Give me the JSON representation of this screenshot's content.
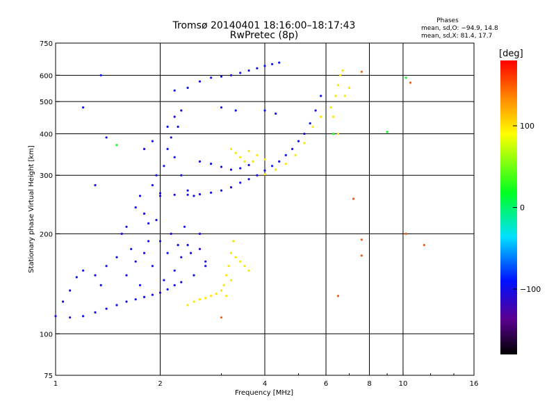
{
  "header": {
    "title_line1": "Tromsø 20140401 18:16:00–18:17:43",
    "title_line2": "RwPretec (8p)",
    "stats_title": "Phases",
    "stats_O": "mean, sd,O: −94.9, 14.8",
    "stats_X": "mean, sd,X:  81.4, 17.7"
  },
  "colorbar": {
    "label": "[deg]",
    "ticks": [
      {
        "value": 100,
        "label": "100"
      },
      {
        "value": 0,
        "label": "0"
      },
      {
        "value": -100,
        "label": "−100"
      }
    ],
    "range": [
      -180,
      180
    ]
  },
  "chart_data": {
    "type": "scatter",
    "xlabel": "Frequency [MHz]",
    "ylabel": "Stationary phase Virtual Height [km]",
    "x_scale": "log",
    "y_scale": "log",
    "xlim": [
      1,
      16
    ],
    "ylim": [
      75,
      750
    ],
    "x_ticks": [
      {
        "value": 1,
        "label": "1"
      },
      {
        "value": 2,
        "label": "2"
      },
      {
        "value": 4,
        "label": "4"
      },
      {
        "value": 6,
        "label": "6"
      },
      {
        "value": 8,
        "label": "8"
      },
      {
        "value": 10,
        "label": "10"
      },
      {
        "value": 16,
        "label": "16"
      }
    ],
    "x_gridlines": [
      2,
      4,
      6,
      8,
      10
    ],
    "y_ticks": [
      {
        "value": 75,
        "label": "75"
      },
      {
        "value": 100,
        "label": "100"
      },
      {
        "value": 200,
        "label": "200"
      },
      {
        "value": 300,
        "label": "300"
      },
      {
        "value": 400,
        "label": "400"
      },
      {
        "value": 500,
        "label": "500"
      },
      {
        "value": 600,
        "label": "600"
      },
      {
        "value": 750,
        "label": "750"
      }
    ],
    "y_gridlines": [
      100,
      200,
      300,
      400,
      500,
      600
    ],
    "grid": true,
    "series": [
      {
        "color_phase": -100,
        "points": [
          [
            1.0,
            113
          ],
          [
            1.1,
            112
          ],
          [
            1.2,
            113
          ],
          [
            1.3,
            116
          ],
          [
            1.4,
            119
          ],
          [
            1.5,
            122
          ],
          [
            1.6,
            125
          ],
          [
            1.7,
            127
          ],
          [
            1.8,
            129
          ],
          [
            1.9,
            131
          ],
          [
            2.0,
            133
          ],
          [
            2.1,
            136
          ],
          [
            2.2,
            140
          ],
          [
            2.3,
            143
          ],
          [
            1.05,
            125
          ],
          [
            1.1,
            135
          ],
          [
            1.15,
            148
          ],
          [
            1.2,
            155
          ],
          [
            1.3,
            150
          ],
          [
            1.35,
            140
          ],
          [
            1.4,
            160
          ],
          [
            1.5,
            170
          ],
          [
            1.55,
            200
          ],
          [
            1.6,
            210
          ],
          [
            1.65,
            180
          ],
          [
            1.7,
            240
          ],
          [
            1.75,
            260
          ],
          [
            1.8,
            230
          ],
          [
            1.85,
            215
          ],
          [
            1.9,
            280
          ],
          [
            1.95,
            300
          ],
          [
            2.0,
            260
          ],
          [
            2.05,
            320
          ],
          [
            2.1,
            360
          ],
          [
            2.15,
            390
          ],
          [
            2.2,
            340
          ],
          [
            2.25,
            420
          ],
          [
            2.3,
            300
          ],
          [
            2.4,
            270
          ],
          [
            2.5,
            260
          ],
          [
            2.6,
            180
          ],
          [
            2.7,
            160
          ],
          [
            1.6,
            150
          ],
          [
            1.7,
            165
          ],
          [
            1.8,
            175
          ],
          [
            1.9,
            160
          ],
          [
            2.0,
            190
          ],
          [
            2.1,
            175
          ],
          [
            2.2,
            155
          ],
          [
            2.3,
            170
          ],
          [
            2.4,
            185
          ],
          [
            2.5,
            150
          ],
          [
            2.6,
            200
          ],
          [
            2.7,
            165
          ],
          [
            1.75,
            140
          ],
          [
            1.85,
            190
          ],
          [
            1.95,
            220
          ],
          [
            2.05,
            145
          ],
          [
            2.15,
            200
          ],
          [
            2.25,
            185
          ],
          [
            2.35,
            210
          ],
          [
            2.45,
            175
          ],
          [
            2.0,
            265
          ],
          [
            2.2,
            262
          ],
          [
            2.4,
            262
          ],
          [
            2.6,
            263
          ],
          [
            2.8,
            266
          ],
          [
            3.0,
            270
          ],
          [
            3.2,
            276
          ],
          [
            3.4,
            285
          ],
          [
            3.6,
            292
          ],
          [
            3.8,
            300
          ],
          [
            4.0,
            310
          ],
          [
            4.2,
            320
          ],
          [
            4.4,
            330
          ],
          [
            4.6,
            345
          ],
          [
            4.8,
            360
          ],
          [
            5.0,
            380
          ],
          [
            5.2,
            400
          ],
          [
            5.4,
            430
          ],
          [
            5.6,
            470
          ],
          [
            5.8,
            520
          ],
          [
            2.2,
            540
          ],
          [
            2.4,
            550
          ],
          [
            2.6,
            575
          ],
          [
            2.8,
            590
          ],
          [
            3.0,
            595
          ],
          [
            3.2,
            600
          ],
          [
            3.4,
            610
          ],
          [
            3.6,
            620
          ],
          [
            3.8,
            630
          ],
          [
            4.0,
            640
          ],
          [
            4.2,
            648
          ],
          [
            4.4,
            655
          ],
          [
            2.6,
            330
          ],
          [
            2.8,
            325
          ],
          [
            3.0,
            318
          ],
          [
            3.2,
            312
          ],
          [
            3.4,
            315
          ],
          [
            3.6,
            322
          ],
          [
            2.1,
            420
          ],
          [
            2.2,
            450
          ],
          [
            2.3,
            470
          ],
          [
            1.9,
            380
          ],
          [
            1.8,
            360
          ],
          [
            3.0,
            480
          ],
          [
            3.3,
            470
          ],
          [
            4.0,
            470
          ],
          [
            4.3,
            460
          ],
          [
            1.2,
            480
          ],
          [
            1.35,
            600
          ],
          [
            1.4,
            390
          ],
          [
            1.3,
            280
          ]
        ]
      },
      {
        "color_phase": 100,
        "points": [
          [
            2.4,
            122
          ],
          [
            2.5,
            125
          ],
          [
            2.6,
            127
          ],
          [
            2.7,
            128
          ],
          [
            2.8,
            130
          ],
          [
            2.9,
            132
          ],
          [
            3.0,
            135
          ],
          [
            3.05,
            140
          ],
          [
            3.1,
            150
          ],
          [
            3.15,
            160
          ],
          [
            3.2,
            175
          ],
          [
            3.25,
            190
          ],
          [
            3.3,
            170
          ],
          [
            3.4,
            165
          ],
          [
            3.5,
            160
          ],
          [
            3.6,
            155
          ],
          [
            3.1,
            130
          ],
          [
            3.2,
            145
          ],
          [
            3.2,
            360
          ],
          [
            3.3,
            350
          ],
          [
            3.4,
            340
          ],
          [
            3.6,
            355
          ],
          [
            3.8,
            345
          ],
          [
            4.0,
            335
          ],
          [
            3.5,
            330
          ],
          [
            3.7,
            330
          ],
          [
            4.0,
            302
          ],
          [
            4.3,
            312
          ],
          [
            4.6,
            325
          ],
          [
            4.9,
            345
          ],
          [
            5.2,
            375
          ],
          [
            5.5,
            420
          ],
          [
            5.8,
            450
          ],
          [
            6.2,
            480
          ],
          [
            6.4,
            520
          ],
          [
            6.5,
            560
          ],
          [
            6.6,
            600
          ],
          [
            6.7,
            620
          ],
          [
            6.8,
            520
          ],
          [
            7.0,
            550
          ],
          [
            6.3,
            450
          ],
          [
            6.5,
            400
          ]
        ]
      },
      {
        "color_phase": 150,
        "points": [
          [
            3.0,
            112
          ],
          [
            7.6,
            172
          ],
          [
            7.6,
            192
          ],
          [
            6.5,
            130
          ],
          [
            7.2,
            255
          ],
          [
            7.6,
            615
          ],
          [
            10.2,
            200
          ],
          [
            10.5,
            570
          ],
          [
            11.5,
            185
          ]
        ]
      },
      {
        "color_phase": 20,
        "points": [
          [
            1.5,
            370
          ],
          [
            6.3,
            400
          ],
          [
            9.0,
            405
          ],
          [
            10.2,
            590
          ]
        ]
      }
    ]
  }
}
